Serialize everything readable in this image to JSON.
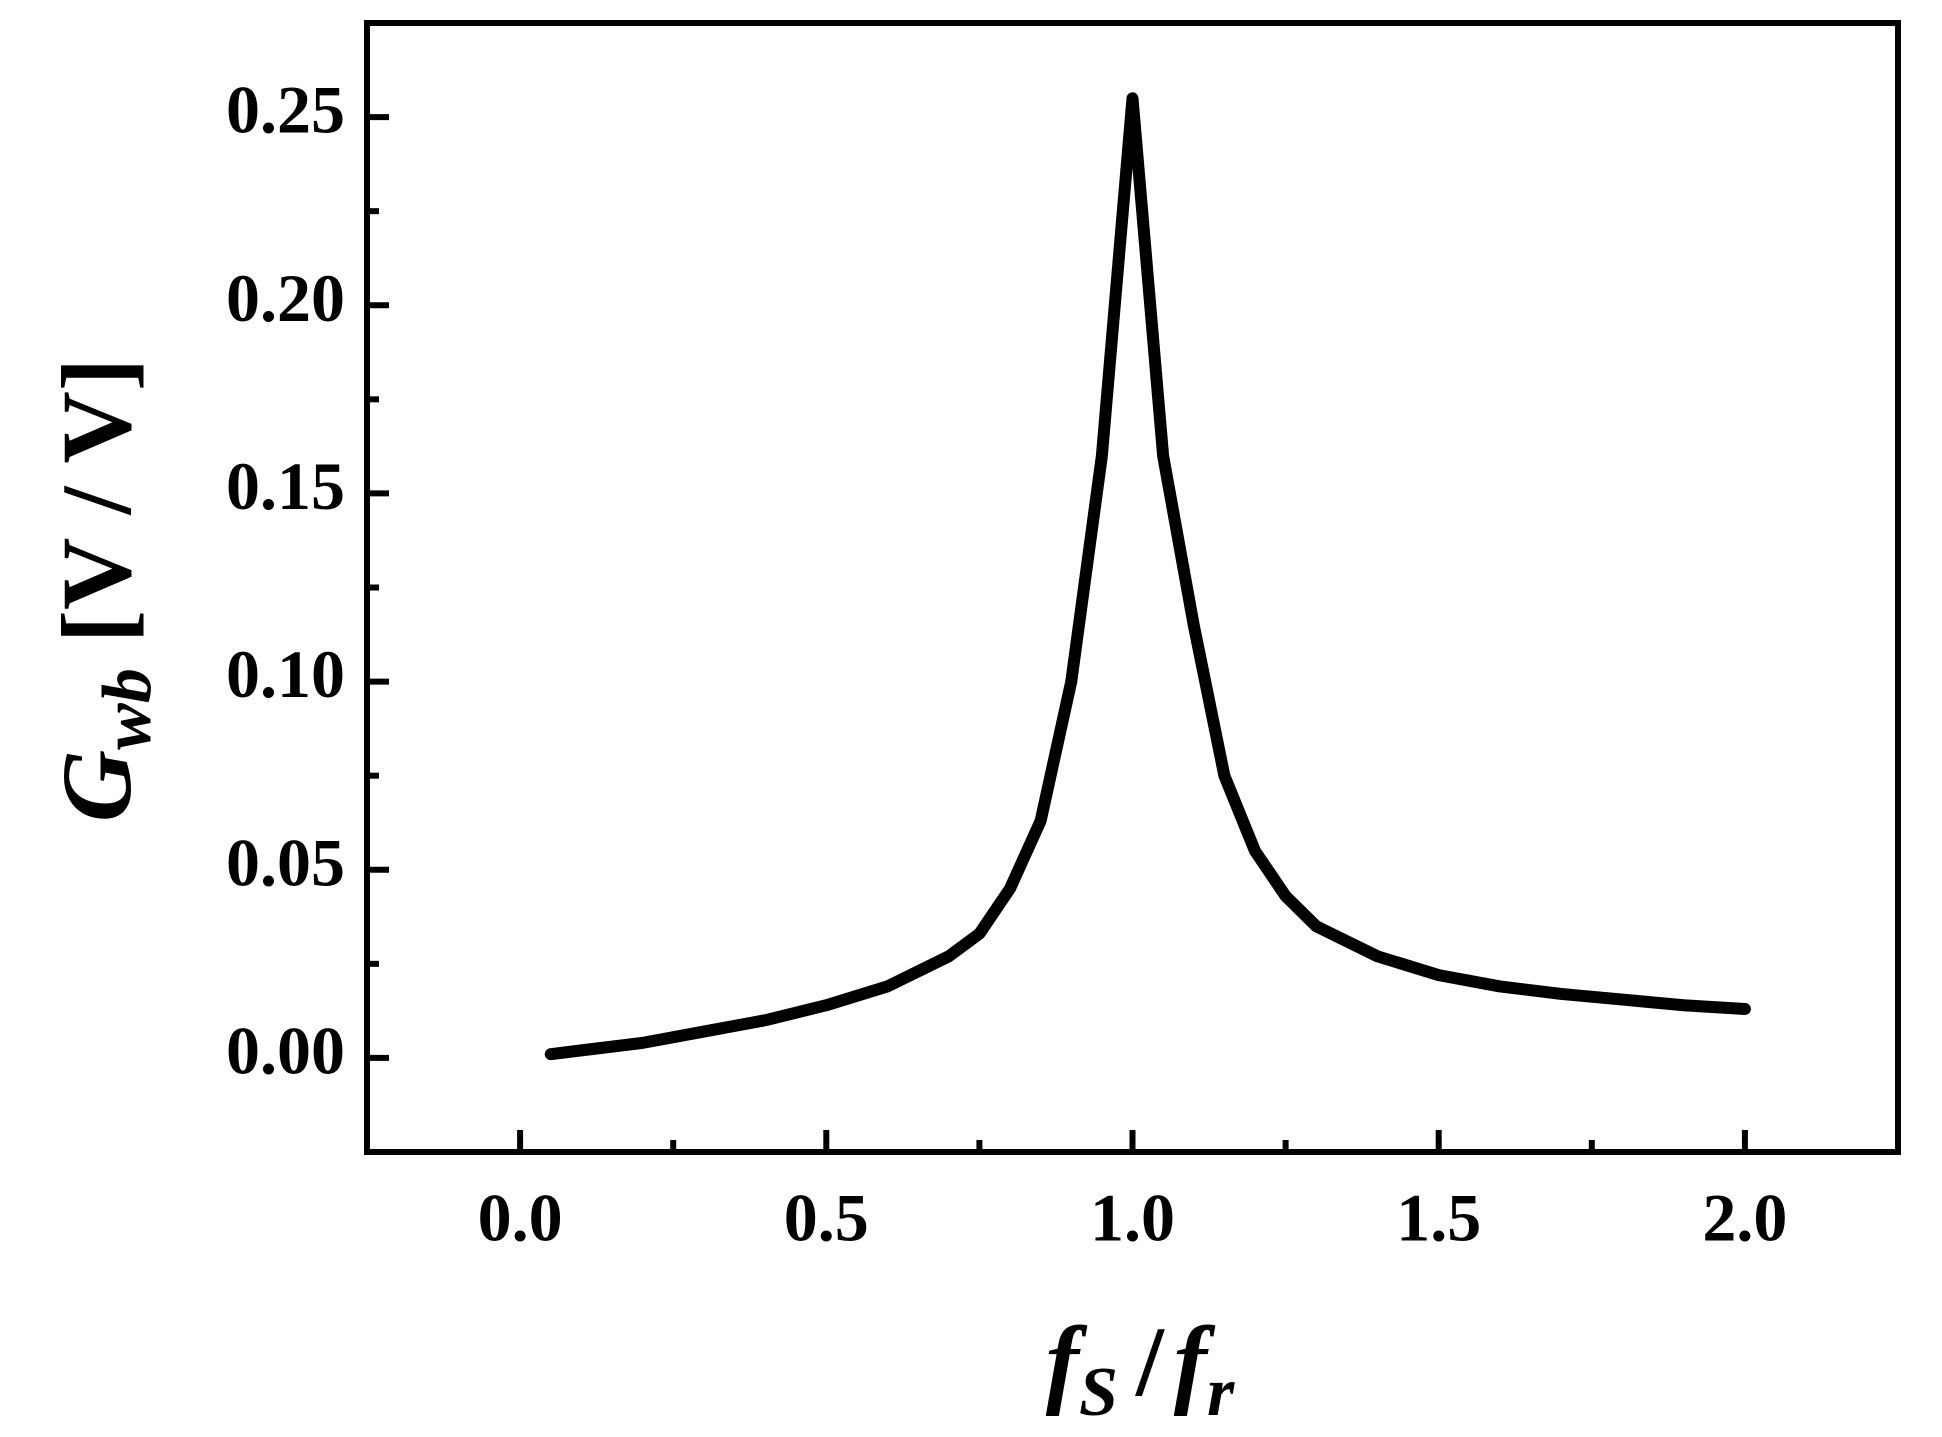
{
  "chart_data": {
    "type": "line",
    "x_label": {
      "parts": [
        "f",
        "S",
        "/",
        "f",
        "r"
      ]
    },
    "y_label": {
      "symbol": "G",
      "subscript": "wb",
      "unit": "[V / V]"
    },
    "x": [
      0.05,
      0.1,
      0.2,
      0.3,
      0.4,
      0.5,
      0.6,
      0.7,
      0.75,
      0.8,
      0.85,
      0.9,
      0.95,
      1.0,
      1.05,
      1.1,
      1.15,
      1.2,
      1.25,
      1.3,
      1.4,
      1.5,
      1.6,
      1.7,
      1.8,
      1.9,
      2.0
    ],
    "series": [
      {
        "color": "#000000",
        "values": [
          0.001,
          0.002,
          0.004,
          0.007,
          0.01,
          0.014,
          0.019,
          0.027,
          0.033,
          0.045,
          0.063,
          0.1,
          0.16,
          0.255,
          0.16,
          0.115,
          0.075,
          0.055,
          0.043,
          0.035,
          0.027,
          0.022,
          0.019,
          0.017,
          0.0155,
          0.014,
          0.013
        ]
      }
    ],
    "xlim": [
      -0.25,
      2.25
    ],
    "ylim": [
      -0.025,
      0.275
    ],
    "xticks": [
      {
        "value": 0,
        "label": "0.0"
      },
      0.5,
      {
        "value": 1,
        "label": "1.0"
      },
      1.5,
      {
        "value": 2,
        "label": "2.0"
      }
    ],
    "yticks": [
      {
        "value": 0,
        "label": "0.00"
      },
      0.05,
      {
        "value": 0.1,
        "label": "0.10"
      },
      0.15,
      {
        "value": 0.2,
        "label": "0.20"
      },
      0.25
    ],
    "xticks_minor": [
      0.25,
      0.75,
      1.25,
      1.75
    ],
    "yticks_minor": [
      0.025,
      0.075,
      0.125,
      0.175,
      0.225
    ],
    "grid": false
  }
}
